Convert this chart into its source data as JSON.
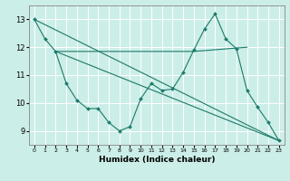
{
  "xlabel": "Humidex (Indice chaleur)",
  "xlim": [
    -0.5,
    23.5
  ],
  "ylim": [
    8.5,
    13.5
  ],
  "yticks": [
    9,
    10,
    11,
    12,
    13
  ],
  "xticks": [
    0,
    1,
    2,
    3,
    4,
    5,
    6,
    7,
    8,
    9,
    10,
    11,
    12,
    13,
    14,
    15,
    16,
    17,
    18,
    19,
    20,
    21,
    22,
    23
  ],
  "bg_color": "#cceee8",
  "grid_color": "#ffffff",
  "line_color": "#1a7a6a",
  "main_line": {
    "x": [
      0,
      1,
      2,
      3,
      4,
      5,
      6,
      7,
      8,
      9,
      10,
      11,
      12,
      13,
      14,
      15,
      16,
      17,
      18,
      19,
      20,
      21,
      22,
      23
    ],
    "y": [
      13.0,
      12.3,
      11.85,
      10.7,
      10.1,
      9.8,
      9.8,
      9.3,
      9.0,
      9.15,
      10.15,
      10.7,
      10.45,
      10.5,
      11.1,
      11.9,
      12.65,
      13.2,
      12.3,
      11.95,
      10.45,
      9.85,
      9.3,
      8.65
    ]
  },
  "flat_line": {
    "x": [
      2,
      15,
      20
    ],
    "y": [
      11.85,
      11.85,
      12.0
    ]
  },
  "diag1_line": {
    "x": [
      2,
      23
    ],
    "y": [
      11.85,
      8.65
    ]
  },
  "diag2_line": {
    "x": [
      0,
      23
    ],
    "y": [
      13.0,
      8.65
    ]
  }
}
